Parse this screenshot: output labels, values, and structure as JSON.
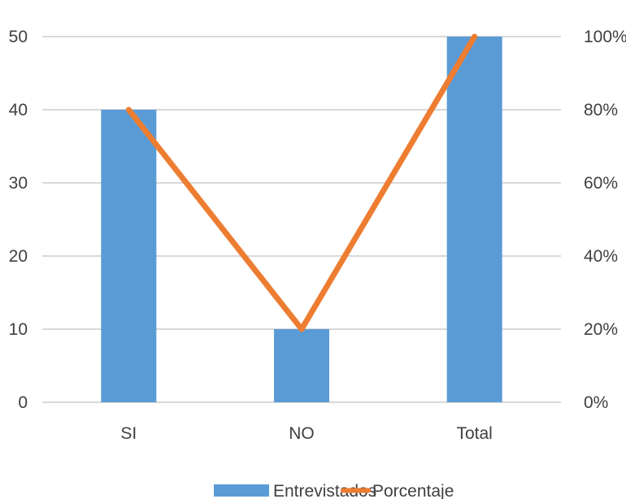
{
  "chart_data": {
    "type": "bar",
    "categories": [
      "SI",
      "NO",
      "Total"
    ],
    "series": [
      {
        "name": "Entrevistados",
        "type": "bar",
        "axis": "left",
        "values": [
          40,
          10,
          50
        ],
        "color": "#5b9bd5"
      },
      {
        "name": "Porcentaje",
        "type": "line",
        "axis": "right",
        "values": [
          0.8,
          0.2,
          1.0
        ],
        "color": "#ed7d31"
      }
    ],
    "y_left": {
      "min": 0,
      "max": 50,
      "ticks": [
        "0",
        "10",
        "20",
        "30",
        "40",
        "50"
      ]
    },
    "y_right": {
      "min": 0,
      "max": 1,
      "ticks": [
        "0%",
        "20%",
        "40%",
        "60%",
        "80%",
        "100%"
      ]
    },
    "grid": true,
    "legend_position": "bottom",
    "gridline_color": "#d9d9d9"
  }
}
